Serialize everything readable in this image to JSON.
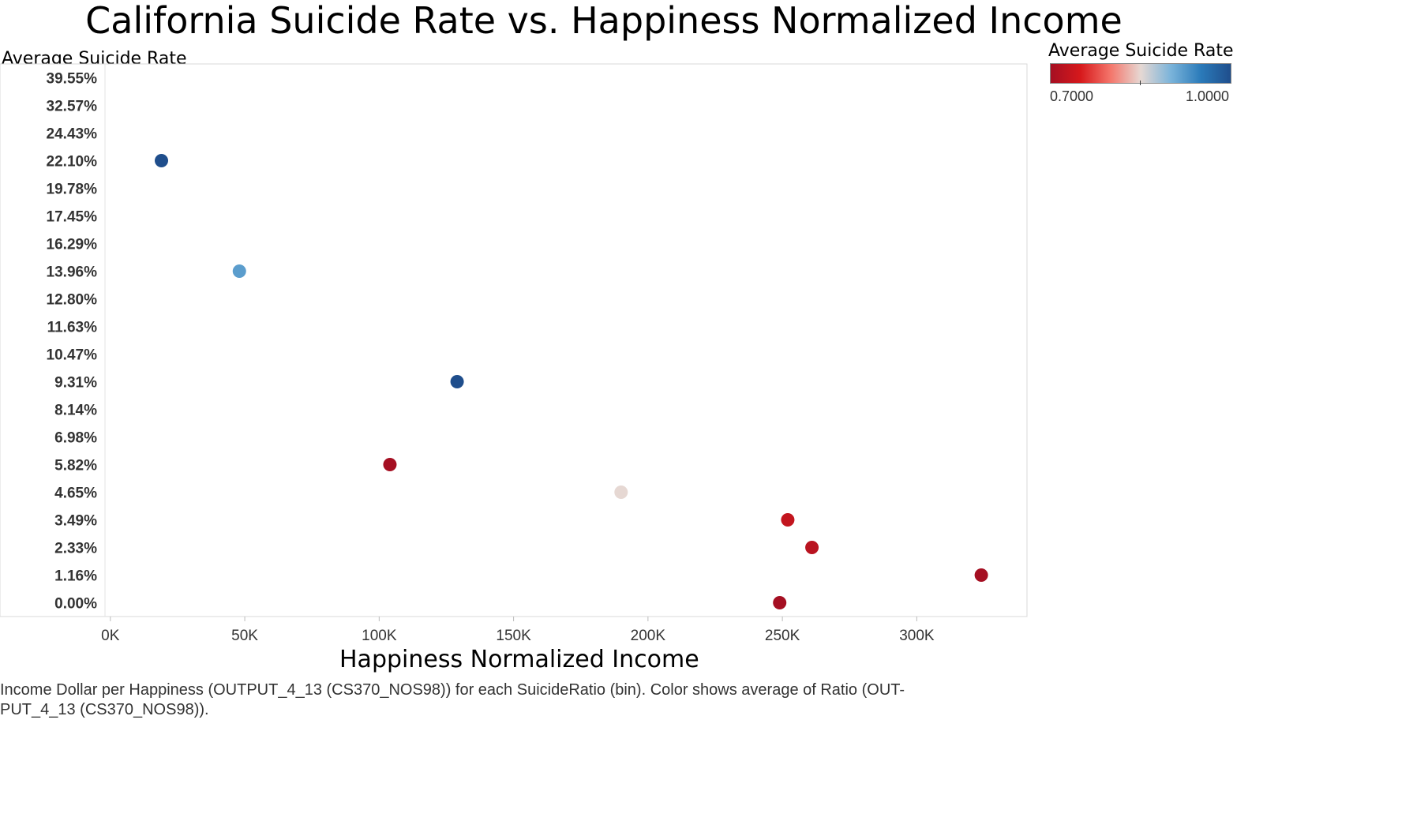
{
  "chart_data": {
    "type": "scatter",
    "title": "California Suicide Rate vs. Happiness Normalized Income",
    "xlabel": "Happiness Normalized Income",
    "ylabel": "Average Suicide Rate",
    "y_categories": [
      "0.00%",
      "1.16%",
      "2.33%",
      "3.49%",
      "4.65%",
      "5.82%",
      "6.98%",
      "8.14%",
      "9.31%",
      "10.47%",
      "11.63%",
      "12.80%",
      "13.96%",
      "16.29%",
      "17.45%",
      "19.78%",
      "22.10%",
      "24.43%",
      "32.57%",
      "39.55%"
    ],
    "x_ticks": [
      0,
      50000,
      100000,
      150000,
      200000,
      250000,
      300000
    ],
    "x_tick_labels": [
      "0K",
      "50K",
      "100K",
      "150K",
      "200K",
      "250K",
      "300K"
    ],
    "xlim": [
      -2000,
      341000
    ],
    "points": [
      {
        "x": 19000,
        "y": "22.10%",
        "color_value": 1.0
      },
      {
        "x": 48000,
        "y": "13.96%",
        "color_value": 0.92
      },
      {
        "x": 129000,
        "y": "9.31%",
        "color_value": 1.0
      },
      {
        "x": 104000,
        "y": "5.82%",
        "color_value": 0.7
      },
      {
        "x": 190000,
        "y": "4.65%",
        "color_value": 0.85
      },
      {
        "x": 252000,
        "y": "3.49%",
        "color_value": 0.73
      },
      {
        "x": 261000,
        "y": "2.33%",
        "color_value": 0.72
      },
      {
        "x": 324000,
        "y": "1.16%",
        "color_value": 0.7
      },
      {
        "x": 249000,
        "y": "0.00%",
        "color_value": 0.7
      }
    ],
    "legend": {
      "title": "Average Suicide Rate",
      "min_label": "0.7000",
      "max_label": "1.0000",
      "colors": [
        "#a50f22",
        "#d7191c",
        "#f4766b",
        "#e6d8d3",
        "#7bb4da",
        "#2b7bba",
        "#1f4e8c"
      ],
      "position": "top-right"
    },
    "caption": "Income Dollar per Happiness (OUTPUT_4_13 (CS370_NOS98)) for each SuicideRatio (bin).  Color shows average of Ratio (OUT-PUT_4_13 (CS370_NOS98))."
  }
}
